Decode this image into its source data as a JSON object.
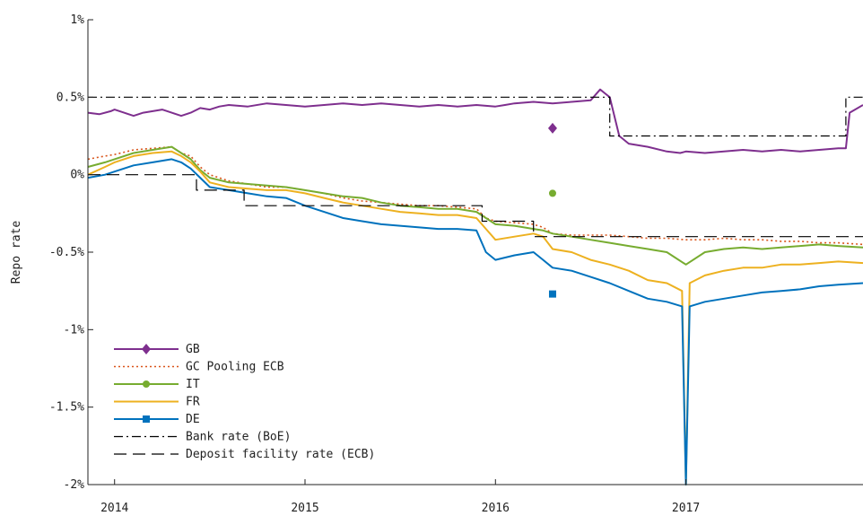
{
  "chart_data": {
    "type": "line",
    "ylabel": "Repo rate",
    "xlabel": "",
    "title": "",
    "xlim": [
      2013.86,
      2017.93
    ],
    "ylim": [
      -2.0,
      1.0
    ],
    "x_ticks": [
      {
        "value": 2014,
        "label": "2014"
      },
      {
        "value": 2015,
        "label": "2015"
      },
      {
        "value": 2016,
        "label": "2016"
      },
      {
        "value": 2017,
        "label": "2017"
      }
    ],
    "y_ticks": [
      {
        "value": 1.0,
        "label": "1%"
      },
      {
        "value": 0.5,
        "label": "0.5%"
      },
      {
        "value": 0.0,
        "label": "0%"
      },
      {
        "value": -0.5,
        "label": "-0.5%"
      },
      {
        "value": -1.0,
        "label": "-1%"
      },
      {
        "value": -1.5,
        "label": "-1.5%"
      },
      {
        "value": -2.0,
        "label": "-2%"
      }
    ],
    "legend_position": "lower-left",
    "series": [
      {
        "name": "GB",
        "color": "#7E2F8E",
        "style": "solid",
        "marker": "diamond",
        "x": [
          2013.86,
          2013.92,
          2013.98,
          2014.0,
          2014.05,
          2014.1,
          2014.15,
          2014.2,
          2014.25,
          2014.3,
          2014.35,
          2014.4,
          2014.45,
          2014.5,
          2014.55,
          2014.6,
          2014.7,
          2014.8,
          2014.9,
          2015.0,
          2015.1,
          2015.2,
          2015.3,
          2015.4,
          2015.5,
          2015.6,
          2015.7,
          2015.8,
          2015.9,
          2016.0,
          2016.05,
          2016.1,
          2016.2,
          2016.3,
          2016.4,
          2016.5,
          2016.55,
          2016.58,
          2016.6,
          2016.65,
          2016.7,
          2016.8,
          2016.9,
          2016.97,
          2017.0,
          2017.1,
          2017.2,
          2017.3,
          2017.4,
          2017.5,
          2017.6,
          2017.7,
          2017.8,
          2017.84,
          2017.86,
          2017.93
        ],
        "y": [
          0.4,
          0.39,
          0.41,
          0.42,
          0.4,
          0.38,
          0.4,
          0.41,
          0.42,
          0.4,
          0.38,
          0.4,
          0.43,
          0.42,
          0.44,
          0.45,
          0.44,
          0.46,
          0.45,
          0.44,
          0.45,
          0.46,
          0.45,
          0.46,
          0.45,
          0.44,
          0.45,
          0.44,
          0.45,
          0.44,
          0.45,
          0.46,
          0.47,
          0.46,
          0.47,
          0.48,
          0.55,
          0.52,
          0.5,
          0.25,
          0.2,
          0.18,
          0.15,
          0.14,
          0.15,
          0.14,
          0.15,
          0.16,
          0.15,
          0.16,
          0.15,
          0.16,
          0.17,
          0.17,
          0.4,
          0.45
        ],
        "marker_point": [
          2016.3,
          0.3
        ]
      },
      {
        "name": "GC Pooling ECB",
        "color": "#D95319",
        "style": "dotted",
        "marker": "none",
        "x": [
          2013.86,
          2013.95,
          2014.0,
          2014.1,
          2014.2,
          2014.3,
          2014.35,
          2014.4,
          2014.45,
          2014.5,
          2014.6,
          2014.7,
          2014.8,
          2014.9,
          2015.0,
          2015.1,
          2015.2,
          2015.3,
          2015.4,
          2015.5,
          2015.6,
          2015.7,
          2015.8,
          2015.9,
          2015.95,
          2016.0,
          2016.1,
          2016.2,
          2016.25,
          2016.3,
          2016.4,
          2016.5,
          2016.6,
          2016.7,
          2016.8,
          2016.9,
          2017.0,
          2017.1,
          2017.2,
          2017.3,
          2017.4,
          2017.5,
          2017.6,
          2017.7,
          2017.8,
          2017.93
        ],
        "y": [
          0.1,
          0.12,
          0.13,
          0.16,
          0.17,
          0.18,
          0.14,
          0.12,
          0.05,
          0.0,
          -0.04,
          -0.06,
          -0.08,
          -0.08,
          -0.1,
          -0.12,
          -0.15,
          -0.17,
          -0.18,
          -0.19,
          -0.2,
          -0.2,
          -0.21,
          -0.22,
          -0.28,
          -0.3,
          -0.31,
          -0.32,
          -0.34,
          -0.38,
          -0.39,
          -0.39,
          -0.39,
          -0.4,
          -0.41,
          -0.41,
          -0.42,
          -0.42,
          -0.41,
          -0.42,
          -0.42,
          -0.43,
          -0.43,
          -0.44,
          -0.44,
          -0.45
        ]
      },
      {
        "name": "IT",
        "color": "#77AC30",
        "style": "solid",
        "marker": "circle",
        "x": [
          2013.86,
          2013.95,
          2014.0,
          2014.1,
          2014.2,
          2014.3,
          2014.35,
          2014.4,
          2014.45,
          2014.5,
          2014.6,
          2014.7,
          2014.8,
          2014.9,
          2015.0,
          2015.1,
          2015.2,
          2015.3,
          2015.4,
          2015.5,
          2015.6,
          2015.7,
          2015.8,
          2015.9,
          2015.95,
          2016.0,
          2016.1,
          2016.2,
          2016.25,
          2016.3,
          2016.4,
          2016.5,
          2016.6,
          2016.7,
          2016.8,
          2016.9,
          2017.0,
          2017.1,
          2017.2,
          2017.3,
          2017.4,
          2017.5,
          2017.6,
          2017.7,
          2017.8,
          2017.93
        ],
        "y": [
          0.05,
          0.08,
          0.1,
          0.14,
          0.16,
          0.18,
          0.14,
          0.1,
          0.03,
          -0.02,
          -0.05,
          -0.06,
          -0.07,
          -0.08,
          -0.1,
          -0.12,
          -0.14,
          -0.15,
          -0.18,
          -0.2,
          -0.21,
          -0.22,
          -0.22,
          -0.24,
          -0.28,
          -0.32,
          -0.33,
          -0.35,
          -0.36,
          -0.38,
          -0.4,
          -0.42,
          -0.44,
          -0.46,
          -0.48,
          -0.5,
          -0.58,
          -0.5,
          -0.48,
          -0.47,
          -0.48,
          -0.47,
          -0.46,
          -0.45,
          -0.46,
          -0.47
        ],
        "marker_point": [
          2016.3,
          -0.12
        ]
      },
      {
        "name": "FR",
        "color": "#EDB120",
        "style": "solid",
        "marker": "none",
        "x": [
          2013.86,
          2013.95,
          2014.0,
          2014.1,
          2014.2,
          2014.3,
          2014.35,
          2014.4,
          2014.45,
          2014.5,
          2014.6,
          2014.7,
          2014.8,
          2014.9,
          2015.0,
          2015.1,
          2015.2,
          2015.3,
          2015.4,
          2015.5,
          2015.6,
          2015.7,
          2015.8,
          2015.9,
          2015.95,
          2016.0,
          2016.1,
          2016.2,
          2016.25,
          2016.3,
          2016.4,
          2016.5,
          2016.6,
          2016.7,
          2016.8,
          2016.9,
          2016.98,
          2017.0,
          2017.02,
          2017.1,
          2017.2,
          2017.3,
          2017.4,
          2017.5,
          2017.6,
          2017.7,
          2017.8,
          2017.93
        ],
        "y": [
          0.0,
          0.05,
          0.08,
          0.12,
          0.14,
          0.15,
          0.12,
          0.08,
          0.02,
          -0.05,
          -0.08,
          -0.09,
          -0.1,
          -0.1,
          -0.12,
          -0.15,
          -0.18,
          -0.2,
          -0.22,
          -0.24,
          -0.25,
          -0.26,
          -0.26,
          -0.28,
          -0.35,
          -0.42,
          -0.4,
          -0.38,
          -0.4,
          -0.48,
          -0.5,
          -0.55,
          -0.58,
          -0.62,
          -0.68,
          -0.7,
          -0.75,
          -2.0,
          -0.7,
          -0.65,
          -0.62,
          -0.6,
          -0.6,
          -0.58,
          -0.58,
          -0.57,
          -0.56,
          -0.57
        ]
      },
      {
        "name": "DE",
        "color": "#0072BD",
        "style": "solid",
        "marker": "square",
        "x": [
          2013.86,
          2013.95,
          2014.0,
          2014.1,
          2014.2,
          2014.3,
          2014.35,
          2014.4,
          2014.45,
          2014.5,
          2014.6,
          2014.7,
          2014.8,
          2014.9,
          2015.0,
          2015.1,
          2015.2,
          2015.3,
          2015.4,
          2015.5,
          2015.6,
          2015.7,
          2015.8,
          2015.9,
          2015.95,
          2016.0,
          2016.1,
          2016.2,
          2016.25,
          2016.3,
          2016.4,
          2016.5,
          2016.6,
          2016.7,
          2016.8,
          2016.9,
          2016.98,
          2017.0,
          2017.02,
          2017.1,
          2017.2,
          2017.3,
          2017.4,
          2017.5,
          2017.6,
          2017.7,
          2017.8,
          2017.93
        ],
        "y": [
          -0.02,
          0.0,
          0.02,
          0.06,
          0.08,
          0.1,
          0.08,
          0.04,
          -0.02,
          -0.08,
          -0.1,
          -0.12,
          -0.14,
          -0.15,
          -0.2,
          -0.24,
          -0.28,
          -0.3,
          -0.32,
          -0.33,
          -0.34,
          -0.35,
          -0.35,
          -0.36,
          -0.5,
          -0.55,
          -0.52,
          -0.5,
          -0.55,
          -0.6,
          -0.62,
          -0.66,
          -0.7,
          -0.75,
          -0.8,
          -0.82,
          -0.85,
          -2.0,
          -0.85,
          -0.82,
          -0.8,
          -0.78,
          -0.76,
          -0.75,
          -0.74,
          -0.72,
          -0.71,
          -0.7
        ],
        "marker_point": [
          2016.3,
          -0.77
        ]
      },
      {
        "name": "Bank rate (BoE)",
        "color": "#000000",
        "style": "dashdot",
        "marker": "none",
        "x": [
          2013.86,
          2016.6,
          2016.6,
          2017.84,
          2017.84,
          2017.93
        ],
        "y": [
          0.5,
          0.5,
          0.25,
          0.25,
          0.5,
          0.5
        ],
        "step": true
      },
      {
        "name": "Deposit facility rate (ECB)",
        "color": "#000000",
        "style": "dashed",
        "marker": "none",
        "x": [
          2013.86,
          2014.43,
          2014.43,
          2014.68,
          2014.68,
          2015.93,
          2015.93,
          2016.2,
          2016.2,
          2017.93
        ],
        "y": [
          0.0,
          0.0,
          -0.1,
          -0.1,
          -0.2,
          -0.2,
          -0.3,
          -0.3,
          -0.4,
          -0.4
        ],
        "step": true
      }
    ]
  }
}
